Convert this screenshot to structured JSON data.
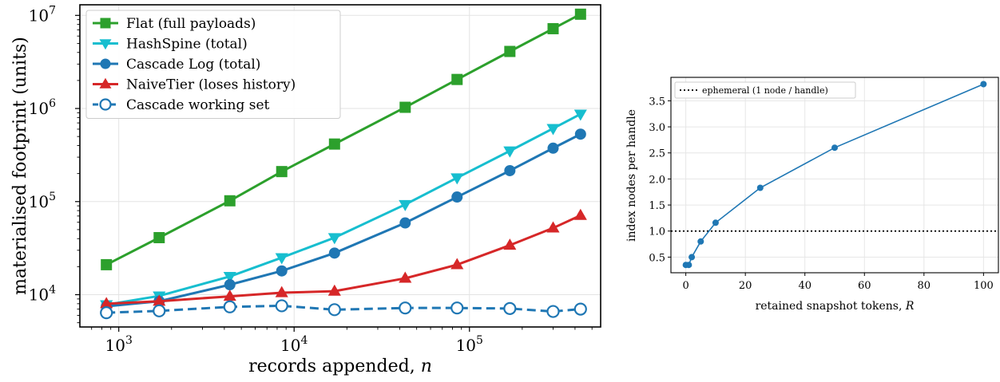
{
  "chart_data": [
    {
      "type": "line",
      "xlabel": "records appended, n",
      "ylabel": "materialised footprint (units)",
      "xscale": "log",
      "yscale": "log",
      "xlim": [
        600,
        560000
      ],
      "ylim": [
        4500,
        13000000
      ],
      "x_ticks": [
        {
          "value": 1000,
          "base": "10",
          "exp": "3"
        },
        {
          "value": 10000,
          "base": "10",
          "exp": "4"
        },
        {
          "value": 100000,
          "base": "10",
          "exp": "5"
        }
      ],
      "y_ticks": [
        {
          "value": 10000,
          "base": "10",
          "exp": "4"
        },
        {
          "value": 100000,
          "base": "10",
          "exp": "5"
        },
        {
          "value": 1000000,
          "base": "10",
          "exp": "6"
        },
        {
          "value": 10000000,
          "base": "10",
          "exp": "7"
        }
      ],
      "grid": true,
      "legend": "top-left",
      "x": [
        850,
        1700,
        4300,
        8500,
        17000,
        43000,
        85000,
        170000,
        300000,
        430000
      ],
      "series": [
        {
          "name": "Flat (full payloads)",
          "color": "#2ca02c",
          "marker": "square",
          "dashed": false,
          "values": [
            21000,
            41000,
            102000,
            210000,
            415000,
            1030000,
            2050000,
            4100000,
            7200000,
            10300000
          ]
        },
        {
          "name": "HashSpine (total)",
          "color": "#17becf",
          "marker": "triangle-down",
          "dashed": false,
          "values": [
            7800,
            9700,
            15700,
            25000,
            41000,
            93000,
            180000,
            350000,
            610000,
            870000
          ]
        },
        {
          "name": "Cascade Log (total)",
          "color": "#1f77b4",
          "marker": "circle",
          "dashed": false,
          "values": [
            7500,
            8500,
            12800,
            18000,
            28000,
            59000,
            112000,
            215000,
            375000,
            530000
          ]
        },
        {
          "name": "NaiveTier (loses history)",
          "color": "#d62728",
          "marker": "triangle-up",
          "dashed": false,
          "values": [
            8000,
            8500,
            9600,
            10500,
            10900,
            15000,
            21000,
            34000,
            52000,
            71000
          ]
        },
        {
          "name": "Cascade working set",
          "color": "#1f77b4",
          "marker": "circle-open",
          "dashed": true,
          "values": [
            6400,
            6700,
            7400,
            7600,
            6900,
            7200,
            7200,
            7100,
            6600,
            7000
          ]
        }
      ]
    },
    {
      "type": "line",
      "xlabel": "retained snapshot tokens, R",
      "ylabel": "index nodes per handle",
      "xlim": [
        -5,
        105
      ],
      "ylim": [
        0.2,
        3.95
      ],
      "x_ticks": [
        0,
        20,
        40,
        60,
        80,
        100
      ],
      "y_ticks": [
        "0.5",
        "1.0",
        "1.5",
        "2.0",
        "2.5",
        "3.0",
        "3.5"
      ],
      "grid": true,
      "legend": "top-left",
      "reference_line": {
        "y": 1.0,
        "label": "ephemeral (1 node / handle)",
        "style": "dotted"
      },
      "series": [
        {
          "name": "",
          "color": "#1f77b4",
          "marker": "circle",
          "x": [
            0,
            1,
            2,
            5,
            10,
            25,
            50,
            100
          ],
          "values": [
            0.35,
            0.35,
            0.5,
            0.8,
            1.16,
            1.83,
            2.6,
            3.82
          ]
        }
      ]
    }
  ]
}
